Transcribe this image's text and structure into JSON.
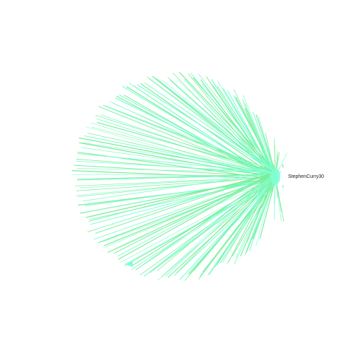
{
  "graph": {
    "hub_label": "StephenCurry30",
    "colors": {
      "edge_aqua": "#7fffd4",
      "edge_green": "#7ded95"
    }
  }
}
